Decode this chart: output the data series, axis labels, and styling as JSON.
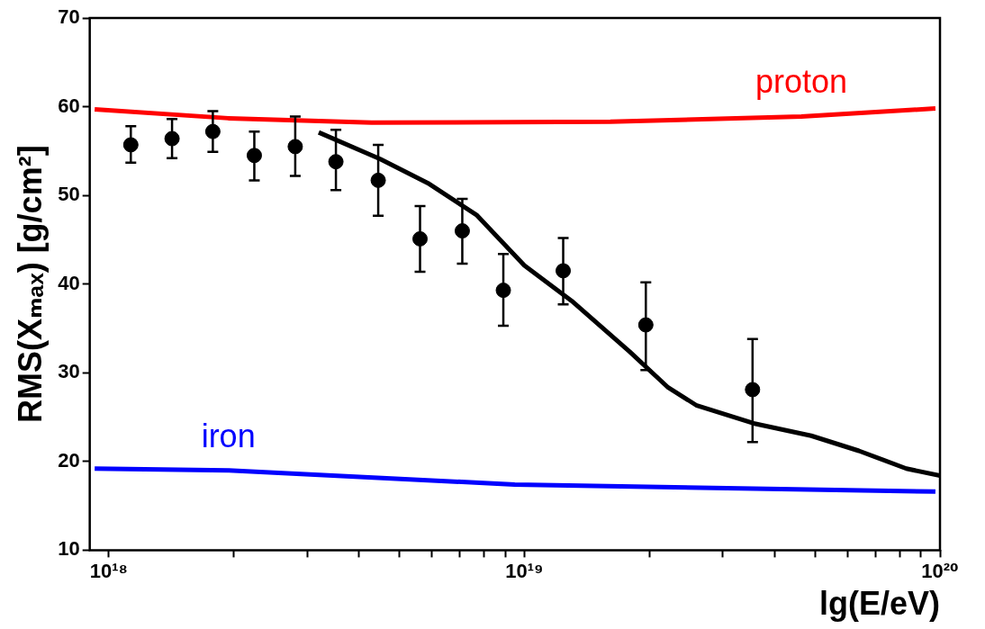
{
  "chart_data": {
    "type": "scatter",
    "xlabel": "lg(E/eV)",
    "ylabel": "RMS(Xₘₐₓ) [g/cm²]",
    "log": "x",
    "xlim": [
      9e+17,
      1e+20
    ],
    "ylim": [
      10,
      70
    ],
    "xticks": [
      {
        "value": 1e+18,
        "label": "10¹⁸"
      },
      {
        "value": 2e+18,
        "label": null
      },
      {
        "value": 3e+18,
        "label": null
      },
      {
        "value": 4e+18,
        "label": null
      },
      {
        "value": 5e+18,
        "label": null
      },
      {
        "value": 6e+18,
        "label": null
      },
      {
        "value": 7e+18,
        "label": null
      },
      {
        "value": 8e+18,
        "label": null
      },
      {
        "value": 9e+18,
        "label": null
      },
      {
        "value": 1e+19,
        "label": "10¹⁹"
      },
      {
        "value": 2e+19,
        "label": null
      },
      {
        "value": 3e+19,
        "label": null
      },
      {
        "value": 4e+19,
        "label": null
      },
      {
        "value": 5e+19,
        "label": null
      },
      {
        "value": 6e+19,
        "label": null
      },
      {
        "value": 7e+19,
        "label": null
      },
      {
        "value": 8e+19,
        "label": null
      },
      {
        "value": 9e+19,
        "label": null
      },
      {
        "value": 1e+20,
        "label": "10²⁰"
      }
    ],
    "yticks": [
      10,
      20,
      30,
      40,
      50,
      60,
      70
    ],
    "grid": false,
    "legend": false,
    "series": [
      {
        "type": "scatter",
        "color": "#000000",
        "marker": "circle",
        "x": [
          1.13e+18,
          1.42e+18,
          1.78e+18,
          2.24e+18,
          2.81e+18,
          3.52e+18,
          4.45e+18,
          5.61e+18,
          7.09e+18,
          8.9e+18,
          1.24e+19,
          1.96e+19,
          3.54e+19
        ],
        "values": [
          55.7,
          56.4,
          57.2,
          54.5,
          55.5,
          53.8,
          51.7,
          45.1,
          46.0,
          39.3,
          41.5,
          35.4,
          28.1
        ],
        "errors": [
          [
            53.7,
            57.8
          ],
          [
            54.2,
            58.6
          ],
          [
            54.9,
            59.5
          ],
          [
            51.7,
            57.2
          ],
          [
            52.2,
            58.9
          ],
          [
            50.6,
            57.4
          ],
          [
            47.7,
            55.7
          ],
          [
            41.4,
            48.8
          ],
          [
            42.3,
            49.6
          ],
          [
            35.3,
            43.4
          ],
          [
            37.7,
            45.2
          ],
          [
            30.3,
            40.2
          ],
          [
            22.2,
            33.8
          ]
        ]
      },
      {
        "type": "line",
        "name": "proton",
        "color": "#ff0000",
        "x": [
          9.25e+17,
          1.94e+18,
          4.29e+18,
          1.61e+19,
          4.64e+19,
          9.75e+19
        ],
        "values": [
          59.7,
          58.7,
          58.2,
          58.3,
          58.9,
          59.8
        ]
      },
      {
        "type": "line",
        "name": "iron",
        "color": "#0000ff",
        "x": [
          9.25e+17,
          1.94e+18,
          9.48e+18,
          9.75e+19
        ],
        "values": [
          19.2,
          19.0,
          17.4,
          16.6
        ]
      },
      {
        "type": "line",
        "color": "#000000",
        "x": [
          3.2e+18,
          4.5e+18,
          5.9e+18,
          7.67e+18,
          1e+19,
          1.3e+19,
          1.79e+19,
          2.21e+19,
          2.6e+19,
          3.56e+19,
          4.9e+19,
          6.38e+19,
          8.3e+19,
          1e+20
        ],
        "values": [
          57.1,
          54.1,
          51.3,
          47.8,
          42.1,
          38.1,
          32.4,
          28.4,
          26.3,
          24.3,
          22.9,
          21.2,
          19.2,
          18.4
        ]
      }
    ]
  }
}
